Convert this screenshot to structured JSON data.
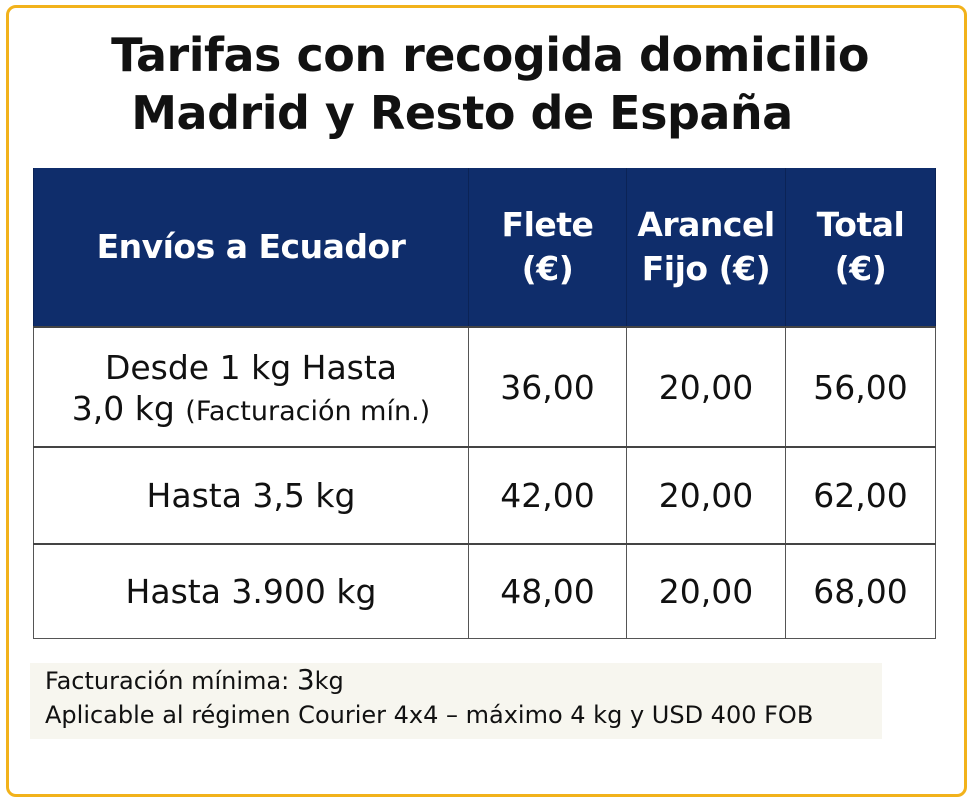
{
  "title": {
    "line1": "Tarifas con recogida domicilio",
    "line2": "Madrid y Resto de España"
  },
  "table": {
    "headers": {
      "col1": "Envíos a Ecuador",
      "col2_line1": "Flete",
      "col2_line2": "(€)",
      "col3_line1": "Arancel",
      "col3_line2": "Fijo (€)",
      "col4": "Total (€)"
    },
    "rows": [
      {
        "desc_line1": "Desde 1 kg Hasta",
        "desc_line2": "3,0 kg",
        "desc_note": "(Facturación mín.)",
        "flete": "36,00",
        "arancel": "20,00",
        "total": "56,00"
      },
      {
        "desc": "Hasta 3,5 kg",
        "flete": "42,00",
        "arancel": "20,00",
        "total": "62,00"
      },
      {
        "desc": "Hasta 3.900 kg",
        "flete": "48,00",
        "arancel": "20,00",
        "total": "68,00"
      }
    ]
  },
  "notes": {
    "minimum_label": "Facturación mínima:",
    "minimum_value": "3",
    "minimum_unit": "kg",
    "applicable": "Aplicable al régimen Courier 4x4 – máximo 4 kg y USD 400 FOB"
  },
  "colors": {
    "border": "#f2b21b",
    "header_bg": "#0f2d6b"
  }
}
